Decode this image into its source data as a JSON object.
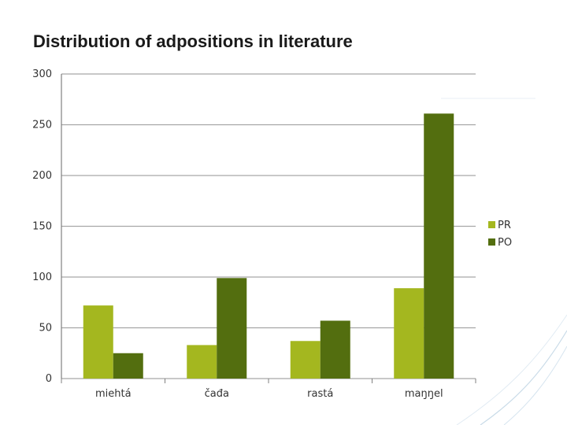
{
  "chart_data": {
    "type": "bar",
    "title": "Distribution of adpositions in literature",
    "categories": [
      "miehtá",
      "čađa",
      "rastá",
      "maŋŋel"
    ],
    "series": [
      {
        "name": "PR",
        "color": "#a4b71f",
        "values": [
          72,
          33,
          37,
          89
        ]
      },
      {
        "name": "PO",
        "color": "#536e0f",
        "values": [
          25,
          99,
          57,
          261
        ]
      }
    ],
    "ylim": [
      0,
      300
    ],
    "yticks": [
      0,
      50,
      100,
      150,
      200,
      250,
      300
    ],
    "grid": true,
    "legend_position": "right"
  },
  "colors": {
    "gridline": "#a6a6a6",
    "axis": "#808080",
    "decoration": "#c9dbe8"
  }
}
